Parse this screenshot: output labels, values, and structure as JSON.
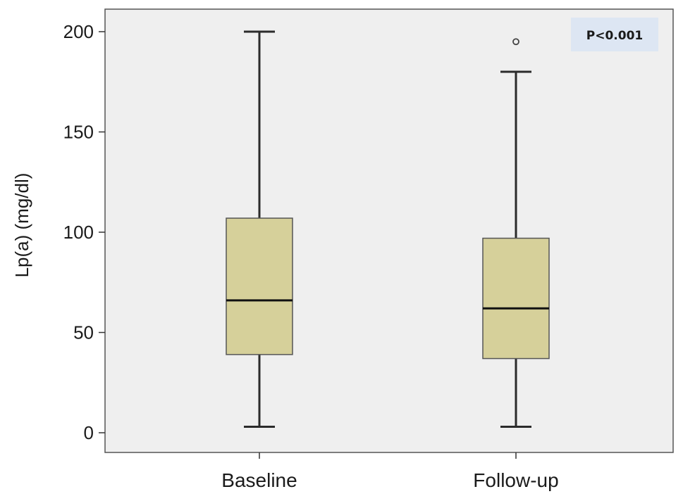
{
  "chart_data": {
    "type": "box",
    "title": "",
    "xlabel": "",
    "ylabel": "Lp(a) (mg/dl)",
    "ylim": [
      0,
      200
    ],
    "yticks": [
      0,
      50,
      100,
      150,
      200
    ],
    "categories": [
      "Baseline",
      "Follow-up"
    ],
    "boxes": [
      {
        "category": "Baseline",
        "whisker_low": 3,
        "q1": 39,
        "median": 66,
        "q3": 107,
        "whisker_high": 200,
        "outliers": []
      },
      {
        "category": "Follow-up",
        "whisker_low": 3,
        "q1": 37,
        "median": 62,
        "q3": 97,
        "whisker_high": 180,
        "outliers": [
          195
        ]
      }
    ],
    "annotation": "P<0.001",
    "grid": false,
    "colors": {
      "plot_background": "#efefef",
      "box_fill": "#d6d09a",
      "box_stroke": "#555555",
      "whisker": "#2b2b2b",
      "annotation_background": "#dde6f3"
    }
  }
}
